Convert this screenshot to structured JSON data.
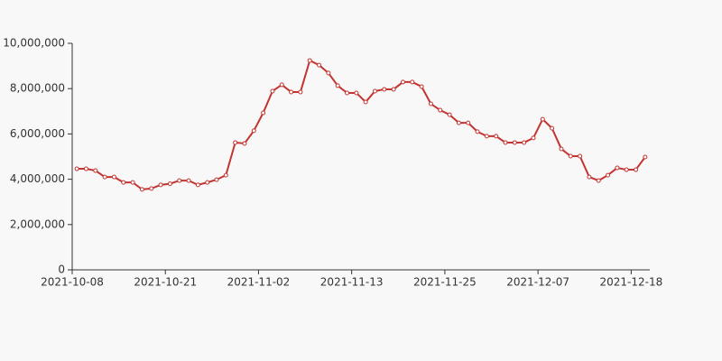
{
  "chart_data": {
    "type": "line",
    "categories": [
      "2021-10-08",
      null,
      null,
      null,
      null,
      null,
      null,
      null,
      null,
      null,
      "2021-10-21",
      null,
      null,
      null,
      null,
      null,
      null,
      null,
      null,
      null,
      "2021-11-02",
      null,
      null,
      null,
      null,
      null,
      null,
      null,
      null,
      null,
      "2021-11-13",
      null,
      null,
      null,
      null,
      null,
      null,
      null,
      null,
      null,
      "2021-11-25",
      null,
      null,
      null,
      null,
      null,
      null,
      null,
      null,
      null,
      "2021-12-07",
      null,
      null,
      null,
      null,
      null,
      null,
      null,
      null,
      null,
      "2021-12-18",
      null
    ],
    "series": [
      {
        "color": "#c23531",
        "values": [
          4460000,
          4460000,
          4380000,
          4100000,
          4100000,
          3860000,
          3860000,
          3550000,
          3590000,
          3750000,
          3800000,
          3940000,
          3940000,
          3750000,
          3860000,
          3980000,
          4180000,
          5620000,
          5580000,
          6140000,
          6930000,
          7890000,
          8170000,
          7850000,
          7850000,
          9240000,
          9040000,
          8690000,
          8130000,
          7810000,
          7810000,
          7410000,
          7890000,
          7970000,
          7970000,
          8290000,
          8290000,
          8090000,
          7330000,
          7050000,
          6850000,
          6490000,
          6490000,
          6100000,
          5900000,
          5900000,
          5620000,
          5620000,
          5620000,
          5820000,
          6650000,
          6250000,
          5340000,
          5020000,
          5020000,
          4100000,
          3940000,
          4180000,
          4500000,
          4420000,
          4420000,
          4980000
        ]
      }
    ],
    "ylim": [
      0,
      10000000
    ],
    "yticks": [
      0,
      {
        "value": 2000000,
        "label": "2,000,000"
      },
      {
        "value": 4000000,
        "label": "4,000,000"
      },
      {
        "value": 6000000,
        "label": "6,000,000"
      },
      {
        "value": 8000000,
        "label": "8,000,000"
      },
      {
        "value": 10000000,
        "label": "10,000,000"
      }
    ],
    "grid": false
  }
}
